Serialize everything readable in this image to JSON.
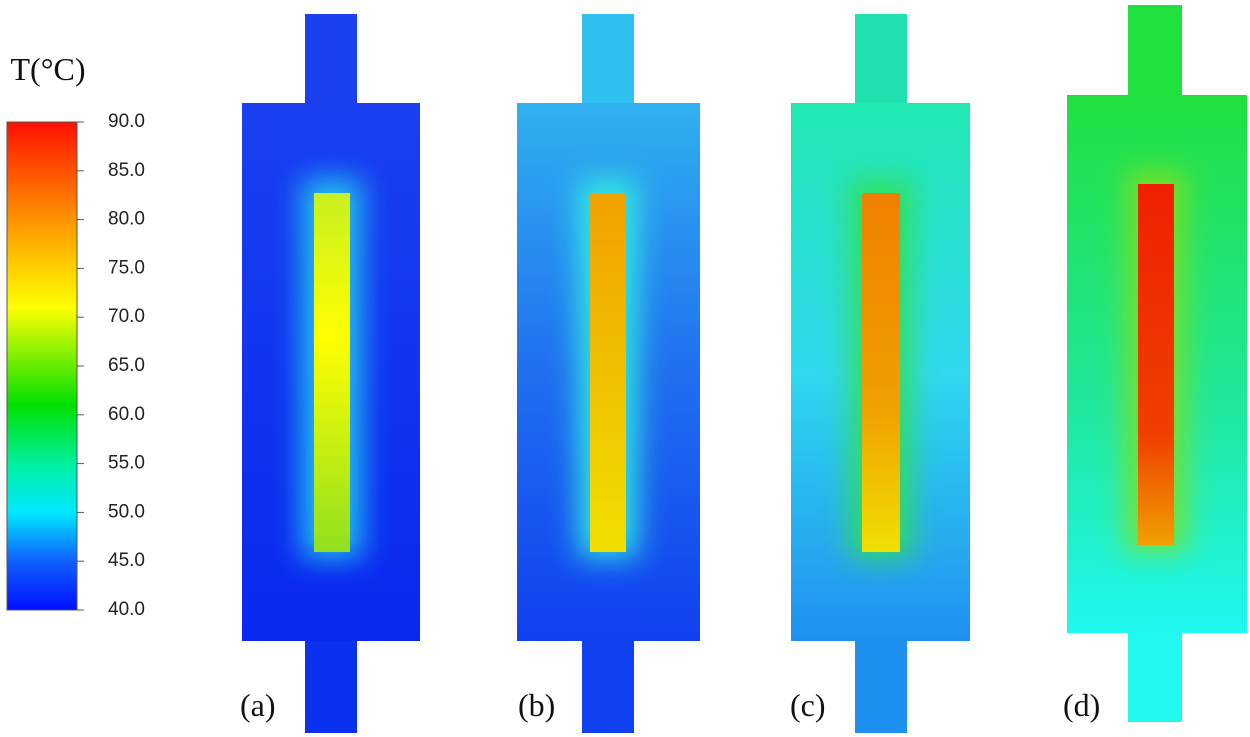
{
  "colorbar": {
    "title": "T(°C)",
    "ticks": [
      {
        "value": 90,
        "label": "90.0"
      },
      {
        "value": 85,
        "label": "85.0"
      },
      {
        "value": 80,
        "label": "80.0"
      },
      {
        "value": 75,
        "label": "75.0"
      },
      {
        "value": 70,
        "label": "70.0"
      },
      {
        "value": 65,
        "label": "65.0"
      },
      {
        "value": 60,
        "label": "60.0"
      },
      {
        "value": 55,
        "label": "55.0"
      },
      {
        "value": 50,
        "label": "50.0"
      },
      {
        "value": 45,
        "label": "45.0"
      },
      {
        "value": 40,
        "label": "40.0"
      }
    ]
  },
  "panels": [
    {
      "label": "(a)"
    },
    {
      "label": "(b)"
    },
    {
      "label": "(c)"
    },
    {
      "label": "(d)"
    }
  ]
}
